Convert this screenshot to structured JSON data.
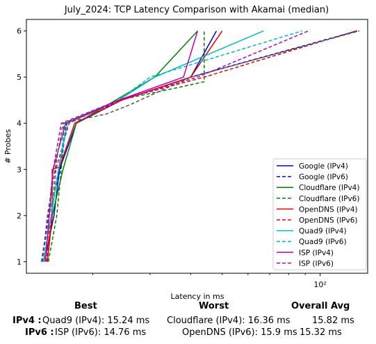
{
  "chart_data": {
    "type": "line",
    "title": "July_2024: TCP Latency Comparison with Akamai (median)",
    "xlabel": "Latency in ms",
    "ylabel": "# Probes",
    "xscale": "log",
    "xlim": [
      12.5,
      140
    ],
    "ylim": [
      0.75,
      6.25
    ],
    "xticks": [
      {
        "value": 100,
        "label": "10²"
      }
    ],
    "yticks": [
      1,
      2,
      3,
      4,
      5,
      6
    ],
    "grid": false,
    "legend_position": "lower-right",
    "series": [
      {
        "name": "Google (IPv4)",
        "color": "#0000cc",
        "style": "solid",
        "points": [
          [
            14.2,
            1
          ],
          [
            15.2,
            2
          ],
          [
            15.8,
            3
          ],
          [
            17.8,
            4
          ],
          [
            24.5,
            4.5
          ],
          [
            40,
            5
          ],
          [
            48,
            6
          ]
        ]
      },
      {
        "name": "Google (IPv6)",
        "color": "#0000cc",
        "style": "dashed",
        "points": [
          [
            14.0,
            1
          ],
          [
            14.6,
            2
          ],
          [
            15.9,
            3
          ],
          [
            16.6,
            4
          ],
          [
            24.5,
            4.5
          ],
          [
            40,
            5
          ],
          [
            130,
            6
          ]
        ]
      },
      {
        "name": "Cloudflare (IPv4)",
        "color": "#008000",
        "style": "solid",
        "points": [
          [
            14.5,
            1
          ],
          [
            15.0,
            2
          ],
          [
            16.2,
            3
          ],
          [
            17.8,
            4
          ],
          [
            23.5,
            4.5
          ],
          [
            31,
            5
          ],
          [
            42,
            6
          ]
        ]
      },
      {
        "name": "Cloudflare (IPv6)",
        "color": "#008000",
        "style": "dashed",
        "points": [
          [
            14.6,
            1
          ],
          [
            15.5,
            2
          ],
          [
            16.0,
            3
          ],
          [
            16.3,
            4
          ],
          [
            24,
            4.5
          ],
          [
            38,
            4.8
          ],
          [
            44,
            4.9
          ],
          [
            44,
            6
          ]
        ]
      },
      {
        "name": "OpenDNS (IPv4)",
        "color": "#ee0000",
        "style": "solid",
        "points": [
          [
            14.5,
            1
          ],
          [
            15.0,
            2
          ],
          [
            15.0,
            3
          ],
          [
            15.8,
            3.05
          ],
          [
            17.6,
            4
          ],
          [
            24.5,
            4.5
          ],
          [
            40,
            5
          ],
          [
            50,
            6
          ]
        ]
      },
      {
        "name": "OpenDNS (IPv6)",
        "color": "#ee0000",
        "style": "dashed",
        "points": [
          [
            14.4,
            1
          ],
          [
            14.9,
            2
          ],
          [
            15.4,
            3
          ],
          [
            16.9,
            4
          ],
          [
            24,
            4.5
          ],
          [
            44,
            5
          ],
          [
            129,
            6
          ]
        ]
      },
      {
        "name": "Quad9 (IPv4)",
        "color": "#00bbbb",
        "style": "solid",
        "points": [
          [
            14.1,
            1
          ],
          [
            14.9,
            2
          ],
          [
            15.7,
            3
          ],
          [
            16.7,
            4
          ],
          [
            24,
            4.5
          ],
          [
            31,
            5
          ],
          [
            67,
            6
          ]
        ]
      },
      {
        "name": "Quad9 (IPv6)",
        "color": "#00bbbb",
        "style": "dashed",
        "points": [
          [
            14.2,
            1
          ],
          [
            14.7,
            2
          ],
          [
            15.7,
            3
          ],
          [
            16.5,
            4
          ],
          [
            24,
            4.5
          ],
          [
            30,
            5
          ],
          [
            88,
            6
          ]
        ]
      },
      {
        "name": "ISP (IPv4)",
        "color": "#bb00bb",
        "style": "solid",
        "points": [
          [
            14.3,
            1
          ],
          [
            14.7,
            2
          ],
          [
            15.1,
            3
          ],
          [
            16.5,
            4
          ],
          [
            24,
            4.5
          ],
          [
            38,
            5
          ],
          [
            42,
            6
          ]
        ]
      },
      {
        "name": "ISP (IPv6)",
        "color": "#bb00bb",
        "style": "dashed",
        "points": [
          [
            13.9,
            1
          ],
          [
            14.6,
            2
          ],
          [
            15.1,
            3
          ],
          [
            16.0,
            4
          ],
          [
            24,
            4.5
          ],
          [
            42,
            5
          ],
          [
            92,
            6
          ]
        ]
      },
      {
        "name": "",
        "color": "#555555",
        "style": "dashed",
        "points": [
          [
            14.0,
            1
          ],
          [
            14.5,
            2
          ],
          [
            15.3,
            3
          ],
          [
            16.2,
            4
          ],
          [
            22,
            4.2
          ],
          [
            26,
            4.4
          ],
          [
            40,
            5
          ],
          [
            132,
            6
          ]
        ]
      }
    ]
  },
  "summary": {
    "headers": {
      "best": "Best",
      "worst": "Worst",
      "overall": "Overall Avg"
    },
    "rows": [
      {
        "label": "IPv4 :",
        "best": "Quad9 (IPv4): 15.24 ms",
        "worst": "Cloudflare (IPv4): 16.36 ms",
        "overall": "15.82 ms"
      },
      {
        "label": "IPv6 :",
        "best": "ISP (IPv6): 14.76 ms",
        "worst": "OpenDNS (IPv6): 15.9 ms",
        "overall": "15.32 ms"
      }
    ]
  }
}
